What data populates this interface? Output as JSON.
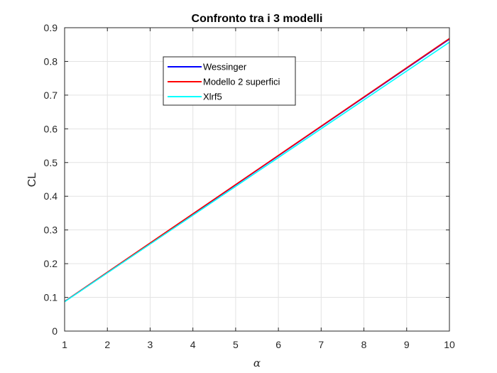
{
  "chart_data": {
    "type": "line",
    "title": "Confronto tra i 3 modelli",
    "xlabel": "α",
    "ylabel": "CL",
    "xlim": [
      1,
      10
    ],
    "ylim": [
      0,
      0.9
    ],
    "xticks": [
      "1",
      "2",
      "3",
      "4",
      "5",
      "6",
      "7",
      "8",
      "9",
      "10"
    ],
    "yticks": [
      "0",
      "0.1",
      "0.2",
      "0.3",
      "0.4",
      "0.5",
      "0.6",
      "0.7",
      "0.8",
      "0.9"
    ],
    "grid": true,
    "legend_position": "upper-left-center",
    "x": [
      1,
      10
    ],
    "series": [
      {
        "name": "Wessinger",
        "color": "#0000ff",
        "values": [
          0.088,
          0.866
        ]
      },
      {
        "name": "Modello 2 superfici",
        "color": "#ff0000",
        "values": [
          0.088,
          0.868
        ]
      },
      {
        "name": "Xlrf5",
        "color": "#00ffff",
        "values": [
          0.087,
          0.857
        ]
      }
    ]
  }
}
